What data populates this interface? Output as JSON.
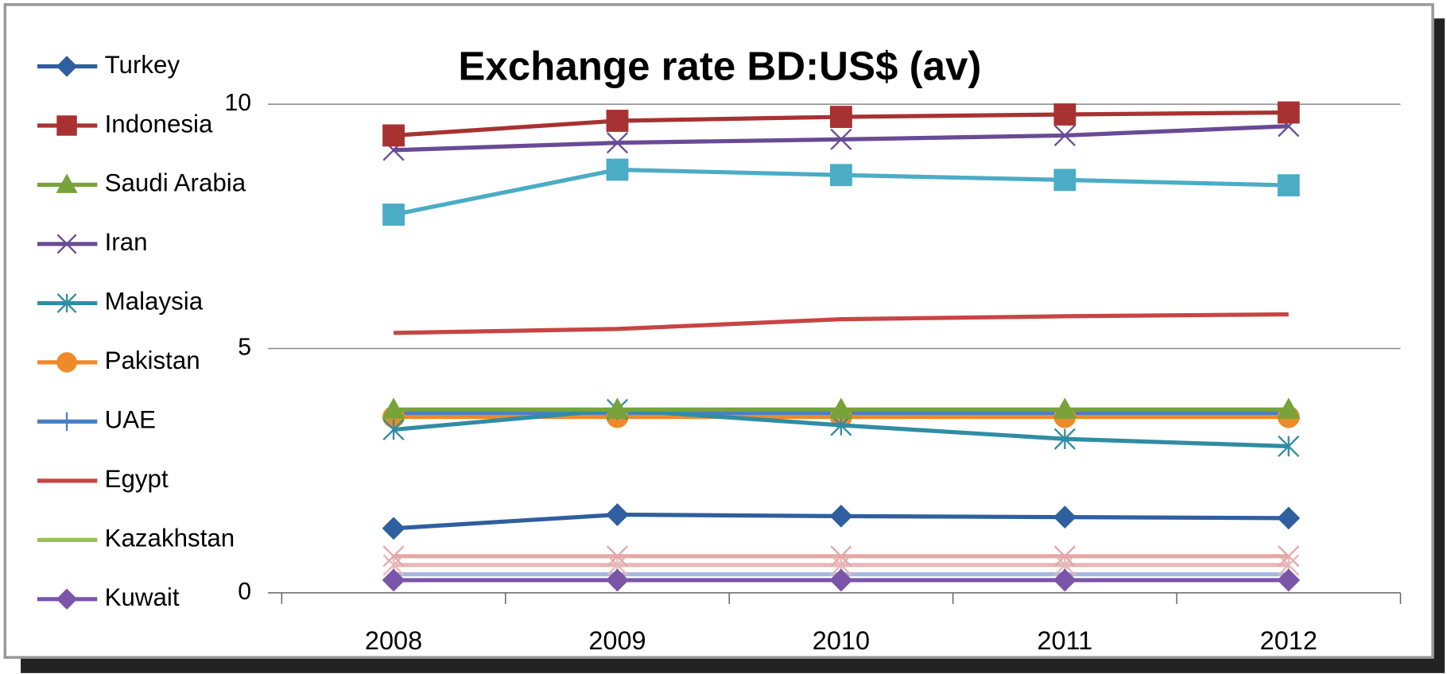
{
  "chart_data": {
    "type": "line",
    "title": "Exchange rate BD:US$ (av)",
    "categories": [
      "2008",
      "2009",
      "2010",
      "2011",
      "2012"
    ],
    "ylim": [
      0,
      10
    ],
    "yticks": [
      0,
      5,
      10
    ],
    "grid": true,
    "legend": "left",
    "series": [
      {
        "name": "Turkey",
        "color": "#2f5f9e",
        "marker": "diamond",
        "values": [
          1.32,
          1.6,
          1.57,
          1.55,
          1.53
        ]
      },
      {
        "name": "Indonesia",
        "color": "#a83232",
        "marker": "square",
        "values": [
          9.36,
          9.66,
          9.74,
          9.79,
          9.83
        ]
      },
      {
        "name": "Saudi Arabia",
        "color": "#77a33a",
        "marker": "triangle",
        "values": [
          3.75,
          3.75,
          3.75,
          3.75,
          3.75
        ]
      },
      {
        "name": "Iran",
        "color": "#6a4a94",
        "marker": "x",
        "values": [
          9.06,
          9.21,
          9.28,
          9.36,
          9.55
        ]
      },
      {
        "name": "Malaysia",
        "color": "#2f8da3",
        "marker": "asterisk",
        "values": [
          3.34,
          3.75,
          3.43,
          3.15,
          3.0
        ]
      },
      {
        "name": "Pakistan",
        "color": "#f0892a",
        "marker": "circle",
        "values": [
          3.6,
          3.6,
          3.6,
          3.6,
          3.6
        ]
      },
      {
        "name": "UAE",
        "color": "#4a80c4",
        "marker": "plus",
        "values": [
          3.67,
          3.67,
          3.67,
          3.67,
          3.67
        ]
      },
      {
        "name": "Egypt",
        "color": "#c84444",
        "marker": "none",
        "values": [
          5.32,
          5.4,
          5.6,
          5.66,
          5.7
        ]
      },
      {
        "name": "Kazakhstan",
        "color": "#98c15a",
        "marker": "none",
        "values": [
          3.75,
          3.75,
          3.75,
          3.75,
          3.75
        ]
      },
      {
        "name": "Kuwait",
        "color": "#7a55a8",
        "marker": "diamond",
        "values": [
          0.26,
          0.26,
          0.26,
          0.26,
          0.26
        ]
      },
      {
        "color": "#4bacc6",
        "marker": "square",
        "values": [
          7.74,
          8.66,
          8.55,
          8.45,
          8.34
        ]
      },
      {
        "color": "#e6a7a7",
        "marker": "x",
        "values": [
          0.75,
          0.75,
          0.75,
          0.75,
          0.75
        ]
      },
      {
        "color": "#e6b8b8",
        "marker": "asterisk",
        "values": [
          0.57,
          0.57,
          0.57,
          0.57,
          0.57
        ]
      },
      {
        "color": "#a9b8e0",
        "marker": "none",
        "values": [
          0.38,
          0.38,
          0.38,
          0.38,
          0.38
        ]
      }
    ]
  }
}
